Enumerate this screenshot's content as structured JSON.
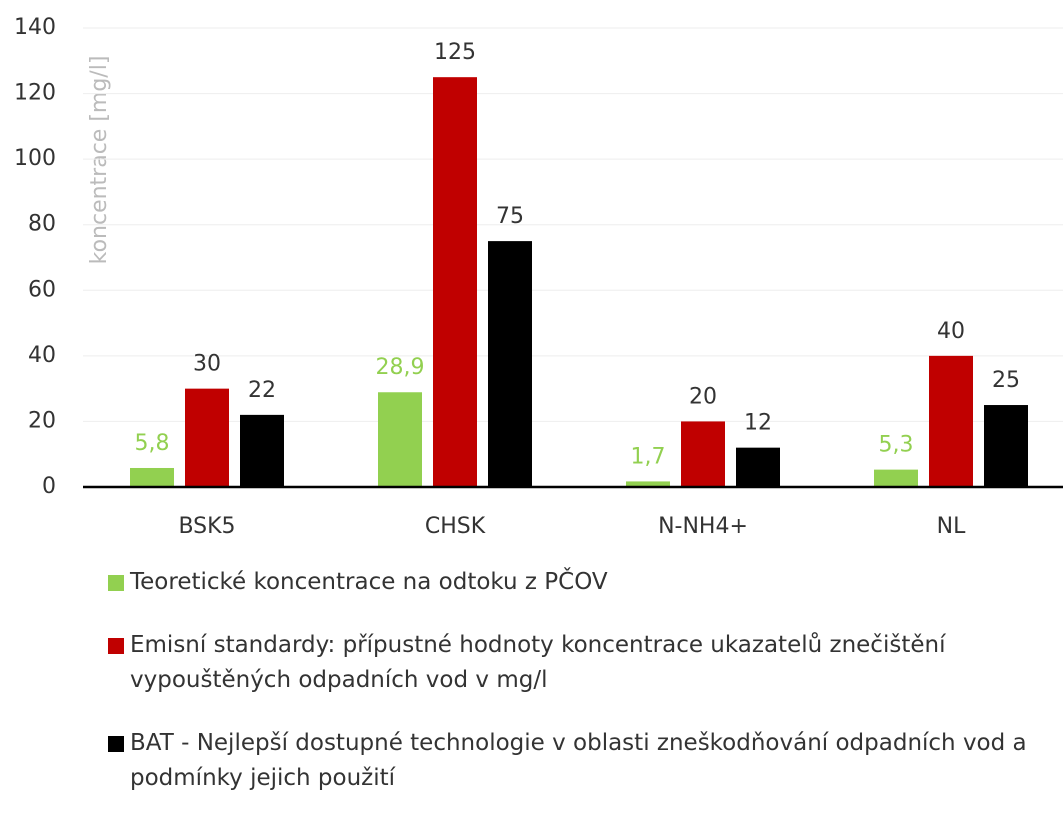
{
  "chart_data": {
    "type": "bar",
    "y_label": "koncentrace [mg/l]",
    "categories": [
      "BSK5",
      "CHSK",
      "N-NH4+",
      "NL"
    ],
    "series": [
      {
        "name": "Teoretické koncentrace na odtoku z PČOV",
        "color": "#92d050",
        "values": [
          5.8,
          28.9,
          1.7,
          5.3
        ],
        "value_labels": [
          "5,8",
          "28,9",
          "1,7",
          "5,3"
        ]
      },
      {
        "name": "Emisní standardy: přípustné hodnoty koncentrace ukazatelů znečištění vypouštěných odpadních vod v mg/l",
        "color": "#c00000",
        "values": [
          30,
          125,
          20,
          40
        ]
      },
      {
        "name": "BAT - Nejlepší dostupné technologie v oblasti zneškodňování odpadních vod a podmínky jejich použití",
        "color": "#000000",
        "values": [
          22,
          75,
          12,
          25
        ]
      }
    ],
    "ylim": [
      0,
      140
    ],
    "yticks": [
      0,
      20,
      40,
      60,
      80,
      100,
      120,
      140
    ],
    "grid": true,
    "legend": "bottom"
  }
}
